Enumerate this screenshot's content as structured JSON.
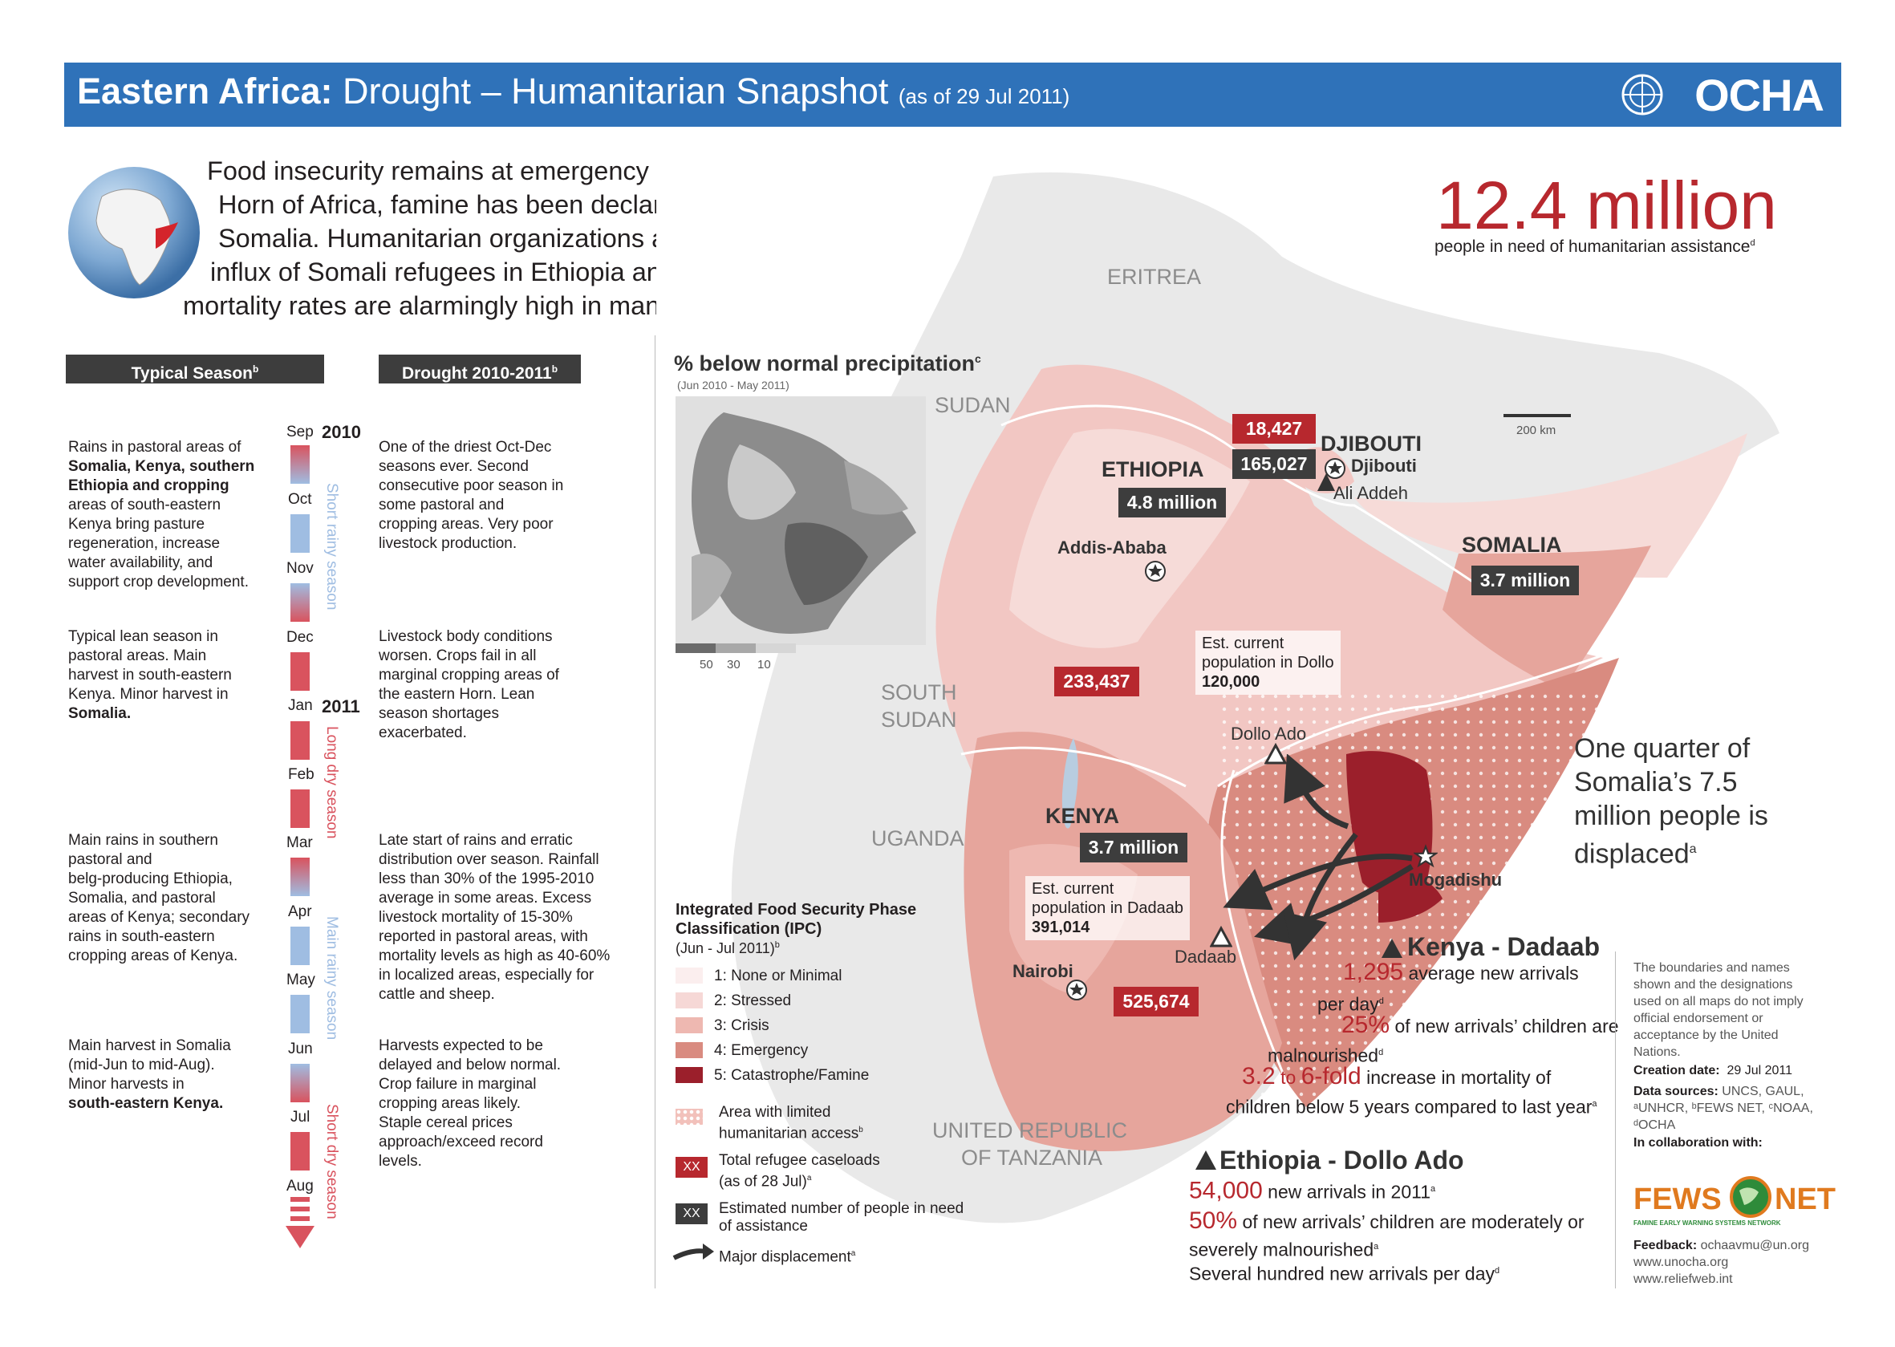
{
  "header": {
    "title_bold": "Eastern Africa:",
    "title_rest": "Drought – Humanitarian Snapshot",
    "as_of": "(as of 29 Jul 2011)",
    "logo": "OCHA"
  },
  "intro": {
    "line1": "Food insecurity remains at emergency levels across parts of the",
    "line2": "Horn of Africa, famine has been declared in two regions of Southern",
    "line3": "Somalia. Humanitarian organizations are struggling to cope with the",
    "line4": "influx of Somali refugees in Ethiopia and Kenya. Malnutrition and",
    "line5": "mortality rates are alarmingly high in many parts of the region."
  },
  "headline": {
    "number": "12.4 million",
    "caption": "people in need of humanitarian assistance",
    "caption_sup": "d"
  },
  "season": {
    "typical_header": "Typical Season",
    "typical_sup": "b",
    "drought_header": "Drought 2010-2011",
    "drought_sup": "b",
    "months": [
      "Sep",
      "Oct",
      "Nov",
      "Dec",
      "Jan",
      "Feb",
      "Mar",
      "Apr",
      "May",
      "Jun",
      "Jul",
      "Aug"
    ],
    "year1": "2010",
    "year2": "2011",
    "labels": [
      "Short rainy season",
      "Long dry season",
      "Main rainy season",
      "Short dry season"
    ],
    "rows": [
      {
        "typical": [
          "Rains in pastoral areas of",
          "Somalia, Kenya, southern",
          "Ethiopia and cropping",
          "areas of south-eastern",
          "Kenya bring pasture",
          "regeneration, increase",
          "water availability, and",
          "support crop development."
        ],
        "drought": [
          "One of the driest Oct-Dec",
          "seasons ever. Second",
          "consecutive poor season in",
          "some pastoral and",
          "cropping areas. Very poor",
          "livestock production."
        ]
      },
      {
        "typical": [
          "Typical lean season in",
          "pastoral areas. Main",
          "harvest in south-eastern",
          "Kenya. Minor harvest in",
          "Somalia."
        ],
        "drought": [
          "Livestock body conditions",
          "worsen. Crops fail in all",
          "marginal cropping areas of",
          "the eastern Horn. Lean",
          "season shortages",
          "exacerbated."
        ]
      },
      {
        "typical": [
          "Main rains in southern",
          "pastoral and",
          "belg-producing Ethiopia,",
          "Somalia, and pastoral",
          "areas of Kenya; secondary",
          "rains in south-eastern",
          "cropping areas of Kenya."
        ],
        "drought": [
          "Late start of rains and erratic",
          "distribution over season. Rainfall",
          "less than 30% of the 1995-2010",
          "average in some areas. Excess",
          "livestock mortality of 15-30%",
          "reported in pastoral areas, with",
          "mortality levels as high as 40-60%",
          "in localized areas, especially for",
          "cattle and sheep."
        ]
      },
      {
        "typical": [
          "Main harvest in Somalia",
          "(mid-Jun to mid-Aug).",
          "Minor harvests in",
          "south-eastern Kenya."
        ],
        "drought": [
          "Harvests expected to be",
          "delayed and below normal.",
          "Crop failure in marginal",
          "cropping areas likely.",
          "Staple cereal prices",
          "approach/exceed record",
          "levels."
        ]
      }
    ]
  },
  "precip": {
    "title": "% below normal precipitation",
    "title_sup": "c",
    "period": "(Jun 2010 - May 2011)",
    "scale": [
      "50",
      "30",
      "10"
    ]
  },
  "map": {
    "labels": {
      "eritrea": "ERITREA",
      "sudan": "SUDAN",
      "south_sudan_1": "SOUTH",
      "south_sudan_2": "SUDAN",
      "uganda": "UGANDA",
      "tanzania_1": "UNITED REPUBLIC",
      "tanzania_2": "OF TANZANIA"
    },
    "ethiopia": "ETHIOPIA",
    "ethiopia_need": "4.8 million",
    "somalia": "SOMALIA",
    "somalia_need": "3.7 million",
    "kenya": "KENYA",
    "kenya_need": "3.7 million",
    "djibouti": "DJIBOUTI",
    "djibouti_city": "Djibouti",
    "djibouti_refugees": "18,427",
    "djibouti_need": "165,027",
    "ali_addeh": "Ali Addeh",
    "addis": "Addis-Ababa",
    "ethiopia_refugees": "233,437",
    "dollo_note": [
      "Est. current",
      "population in Dollo",
      "120,000"
    ],
    "dollo_ado": "Dollo Ado",
    "mogadishu": "Mogadishu",
    "dadaab_note": [
      "Est. current",
      "population in Dadaab",
      "391,014"
    ],
    "dadaab": "Dadaab",
    "nairobi": "Nairobi",
    "kenya_refugees": "525,674",
    "scale": "200 km",
    "quarter": [
      "One quarter of",
      "Somalia’s 7.5",
      "million people is",
      "displaced"
    ],
    "quarter_sup": "a"
  },
  "ipc_legend": {
    "title1": "Integrated Food Security Phase",
    "title2": "Classification (IPC)",
    "period": "(Jun - Jul 2011)",
    "period_sup": "b",
    "items": [
      {
        "label": "1: None or Minimal",
        "color": "#fbeeee"
      },
      {
        "label": "2: Stressed",
        "color": "#f6d8d6"
      },
      {
        "label": "3: Crisis",
        "color": "#eeb8b1"
      },
      {
        "label": "4: Emergency",
        "color": "#d98b80"
      },
      {
        "label": "5: Catastrophe/Famine",
        "color": "#9b1f2b"
      }
    ],
    "limited_access": [
      "Area with limited",
      "humanitarian access"
    ],
    "limited_sup": "b",
    "refugee_box": "XX",
    "refugee_label": [
      "Total refugee caseloads",
      "(as of 28 Jul)"
    ],
    "refugee_sup": "a",
    "need_box": "XX",
    "need_label": [
      "Estimated number of people in need",
      "of assistance"
    ],
    "displacement": "Major displacement",
    "displacement_sup": "a"
  },
  "kenya_dadaab": {
    "title": "Kenya - Dadaab",
    "s1_num": "1,295",
    "s1_a": "average new arrivals",
    "s1_b": "per day",
    "s1_sup": "d",
    "s2_num": "25%",
    "s2_a": "of new arrivals’ children are",
    "s2_b": "malnourished",
    "s2_sup": "d",
    "s3_num1": "3.2",
    "s3_to": "to",
    "s3_num2": "6-fold",
    "s3_a": "increase in mortality of",
    "s3_b": "children below 5 years compared to last year",
    "s3_sup": "a"
  },
  "ethiopia_dollo": {
    "title": "Ethiopia - Dollo Ado",
    "s1_num": "54,000",
    "s1_a": "new arrivals in 2011",
    "s1_sup": "a",
    "s2_num": "50%",
    "s2_a": "of new arrivals’ children are moderately or",
    "s2_b": "severely malnourished",
    "s2_sup": "a",
    "s3": "Several hundred new arrivals per day",
    "s3_sup": "d"
  },
  "footer": {
    "disclaimer": [
      "The boundaries and names",
      "shown and the designations",
      "used on all maps do not imply",
      "official endorsement or",
      "acceptance by the United",
      "Nations."
    ],
    "creation_label": "Creation date:",
    "creation_value": "29 Jul 2011",
    "sources_label": "Data sources:",
    "sources_1": "UNCS, GAUL,",
    "sources_2": "ᵃUNHCR, ᵇFEWS NET, ᶜNOAA,",
    "sources_3": "ᵈOCHA",
    "collab": "In collaboration with:",
    "fews_1": "FEWS",
    "fews_2": "NET",
    "fews_sub": "FAMINE EARLY WARNING SYSTEMS NETWORK",
    "feedback_label": "Feedback:",
    "feedback_value": "ochaavmu@un.org",
    "url1": "www.unocha.org",
    "url2": "www.reliefweb.int"
  }
}
